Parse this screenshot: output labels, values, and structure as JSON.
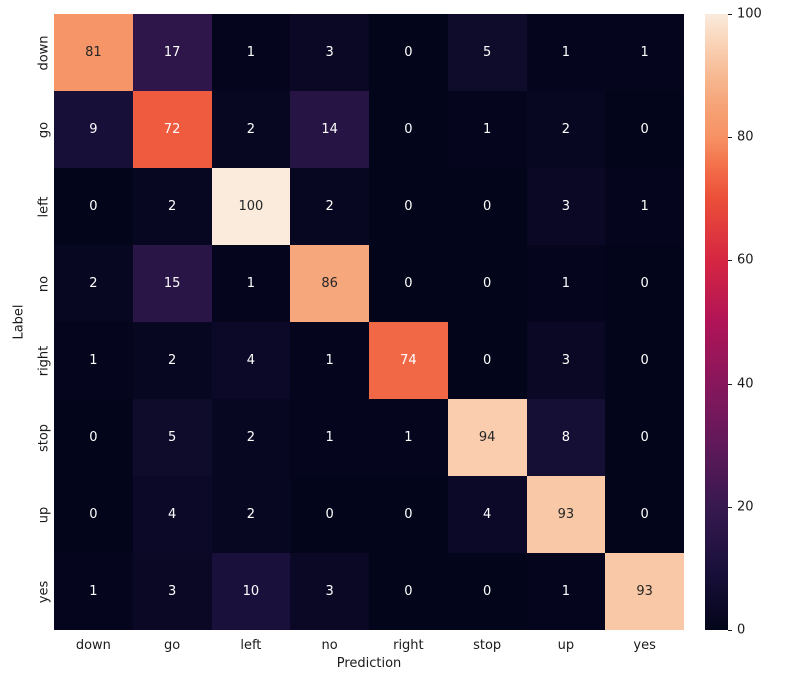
{
  "figure": {
    "background": "#ffffff"
  },
  "chart_data": {
    "type": "heatmap",
    "title": "",
    "xlabel": "Prediction",
    "ylabel": "Label",
    "x_categories": [
      "down",
      "go",
      "left",
      "no",
      "right",
      "stop",
      "up",
      "yes"
    ],
    "y_categories": [
      "down",
      "go",
      "left",
      "no",
      "right",
      "stop",
      "up",
      "yes"
    ],
    "matrix": [
      [
        81,
        17,
        1,
        3,
        0,
        5,
        1,
        1
      ],
      [
        9,
        72,
        2,
        14,
        0,
        1,
        2,
        0
      ],
      [
        0,
        2,
        100,
        2,
        0,
        0,
        3,
        1
      ],
      [
        2,
        15,
        1,
        86,
        0,
        0,
        1,
        0
      ],
      [
        1,
        2,
        4,
        1,
        74,
        0,
        3,
        0
      ],
      [
        0,
        5,
        2,
        1,
        1,
        94,
        8,
        0
      ],
      [
        0,
        4,
        2,
        0,
        0,
        4,
        93,
        0
      ],
      [
        1,
        3,
        10,
        3,
        0,
        0,
        1,
        93
      ]
    ],
    "vmin": 0,
    "vmax": 100,
    "colorbar_ticks": [
      0,
      20,
      40,
      60,
      80,
      100
    ],
    "colorbar_position": "right",
    "grid": false,
    "colormap_name": "rocket",
    "colormap_stops": [
      {
        "t": 0.0,
        "color": "#03051A"
      },
      {
        "t": 0.1,
        "color": "#1A103C"
      },
      {
        "t": 0.2,
        "color": "#371950"
      },
      {
        "t": 0.3,
        "color": "#60195A"
      },
      {
        "t": 0.4,
        "color": "#88175C"
      },
      {
        "t": 0.5,
        "color": "#B01457"
      },
      {
        "t": 0.6,
        "color": "#D62642"
      },
      {
        "t": 0.7,
        "color": "#EB4F39"
      },
      {
        "t": 0.75,
        "color": "#F36E49"
      },
      {
        "t": 0.8,
        "color": "#F69264"
      },
      {
        "t": 0.85,
        "color": "#F6A276"
      },
      {
        "t": 0.9,
        "color": "#F7B992"
      },
      {
        "t": 0.95,
        "color": "#F9D2B5"
      },
      {
        "t": 1.0,
        "color": "#FAEBDD"
      }
    ],
    "annotation_text_dark": "#262626",
    "annotation_text_light": "#FFFFFF"
  }
}
